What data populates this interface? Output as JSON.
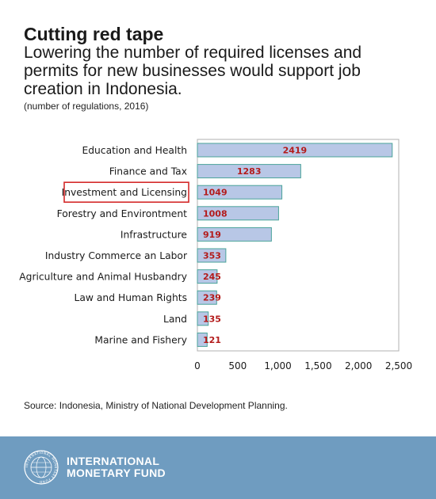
{
  "header": {
    "title": "Cutting red tape",
    "subtitle": "Lowering the number of required licenses and permits for new businesses would support job creation in Indonesia.",
    "note": "(number of regulations, 2016)"
  },
  "source": "Source: Indonesia, Ministry of National Development Planning.",
  "footer": {
    "org_line1": "INTERNATIONAL",
    "org_line2": "MONETARY FUND",
    "seal_text": "INTERNATIONAL MONETARY FUND"
  },
  "chart_data": {
    "type": "bar",
    "orientation": "horizontal",
    "categories": [
      "Education and Health",
      "Finance and Tax",
      "Investment and Licensing",
      "Forestry and Environtment",
      "Infrastructure",
      "Industry Commerce an Labor",
      "Agriculture and Animal Husbandry",
      "Law and Human Rights",
      "Land",
      "Marine and Fishery"
    ],
    "values": [
      2419,
      1283,
      1049,
      1008,
      919,
      353,
      245,
      239,
      135,
      121
    ],
    "value_labels": [
      "2419",
      "1283",
      "1049",
      "1008",
      "919",
      "353",
      "245",
      "239",
      "135",
      "121"
    ],
    "highlighted_category": "Investment and Licensing",
    "xlim": [
      0,
      2500
    ],
    "x_ticks": [
      0,
      500,
      1000,
      1500,
      2000,
      2500
    ],
    "x_tick_labels": [
      "0",
      "500",
      "1,000",
      "1,500",
      "2,000",
      "2,500"
    ],
    "grid": false,
    "colors": {
      "bar_fill": "#b8c7e6",
      "bar_stroke": "#4aa39a",
      "value_label": "#b31b1b",
      "highlight_box": "#d42a2a",
      "axis": "#b0b0b0",
      "footer_bg": "#6f9cc0"
    }
  }
}
